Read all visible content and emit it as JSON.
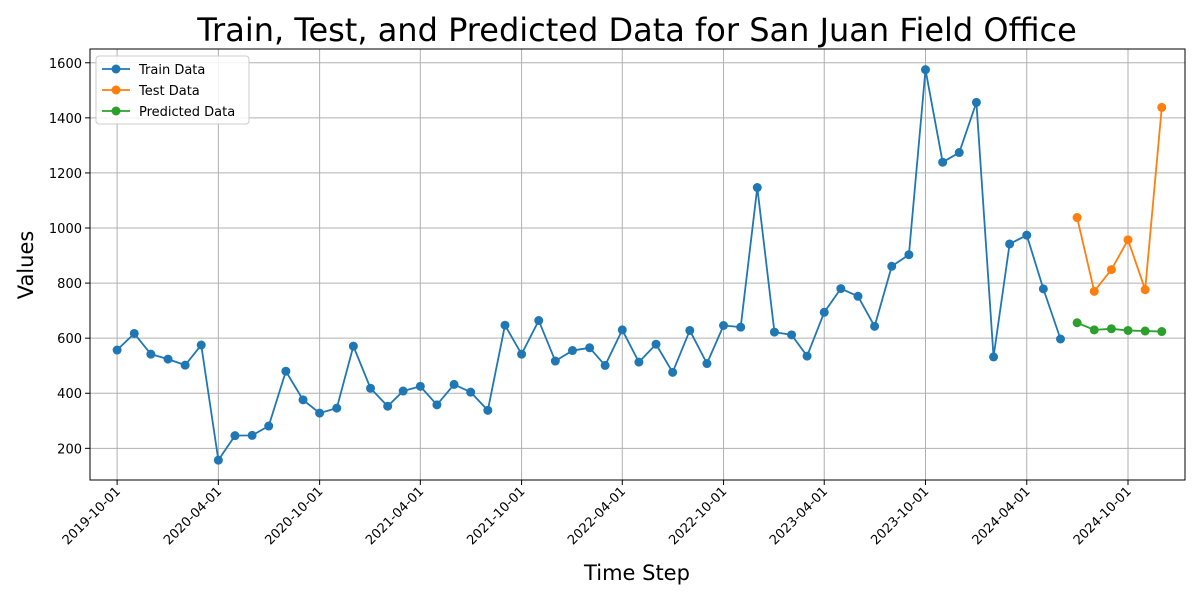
{
  "chart_data": {
    "type": "line",
    "title": "Train, Test, and Predicted Data for San Juan Field Office",
    "xlabel": "Time Step",
    "ylabel": "Values",
    "x_ticks": [
      "2019-10-01",
      "2020-04-01",
      "2020-10-01",
      "2021-04-01",
      "2021-10-01",
      "2022-04-01",
      "2022-10-01",
      "2023-04-01",
      "2023-10-01",
      "2024-04-01",
      "2024-10-01"
    ],
    "y_ticks": [
      200,
      400,
      600,
      800,
      1000,
      1200,
      1400,
      1600
    ],
    "xlim": [
      "2019-08-13",
      "2025-01-12"
    ],
    "ylim": [
      85,
      1650
    ],
    "grid": true,
    "legend_position": "top-left",
    "series": [
      {
        "name": "Train Data",
        "color": "#1f77b4",
        "x": [
          "2019-10-01",
          "2019-11-01",
          "2019-12-01",
          "2020-01-01",
          "2020-02-01",
          "2020-03-01",
          "2020-04-01",
          "2020-05-01",
          "2020-06-01",
          "2020-07-01",
          "2020-08-01",
          "2020-09-01",
          "2020-10-01",
          "2020-11-01",
          "2020-12-01",
          "2021-01-01",
          "2021-02-01",
          "2021-03-01",
          "2021-04-01",
          "2021-05-01",
          "2021-06-01",
          "2021-07-01",
          "2021-08-01",
          "2021-09-01",
          "2021-10-01",
          "2021-11-01",
          "2021-12-01",
          "2022-01-01",
          "2022-02-01",
          "2022-03-01",
          "2022-04-01",
          "2022-05-01",
          "2022-06-01",
          "2022-07-01",
          "2022-08-01",
          "2022-09-01",
          "2022-10-01",
          "2022-11-01",
          "2022-12-01",
          "2023-01-01",
          "2023-02-01",
          "2023-03-01",
          "2023-04-01",
          "2023-05-01",
          "2023-06-01",
          "2023-07-01",
          "2023-08-01",
          "2023-09-01",
          "2023-10-01",
          "2023-11-01",
          "2023-12-01",
          "2024-01-01",
          "2024-02-01",
          "2024-03-01",
          "2024-04-01",
          "2024-05-01",
          "2024-06-01"
        ],
        "values": [
          557,
          617,
          542,
          524,
          502,
          575,
          157,
          246,
          247,
          281,
          480,
          376,
          328,
          346,
          571,
          418,
          353,
          408,
          425,
          358,
          432,
          404,
          338,
          647,
          542,
          664,
          517,
          555,
          565,
          501,
          630,
          513,
          578,
          476,
          628,
          508,
          646,
          640,
          1147,
          622,
          612,
          535,
          694,
          780,
          752,
          643,
          861,
          903,
          1575,
          1239,
          1274,
          1456,
          532,
          942,
          974,
          779,
          597
        ]
      },
      {
        "name": "Test Data",
        "color": "#ff7f0e",
        "x": [
          "2024-07-01",
          "2024-08-01",
          "2024-09-01",
          "2024-10-01",
          "2024-11-01",
          "2024-12-01"
        ],
        "values": [
          1038,
          770,
          849,
          957,
          776,
          1438
        ]
      },
      {
        "name": "Predicted Data",
        "color": "#2ca02c",
        "x": [
          "2024-07-01",
          "2024-08-01",
          "2024-09-01",
          "2024-10-01",
          "2024-11-01",
          "2024-12-01"
        ],
        "values": [
          656,
          630,
          634,
          628,
          626,
          624
        ]
      }
    ]
  }
}
